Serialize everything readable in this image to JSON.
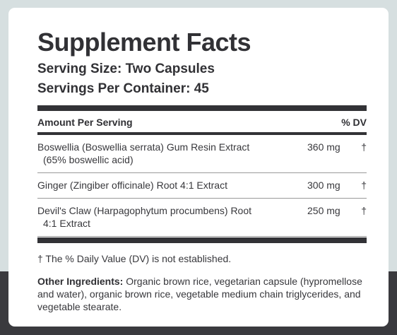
{
  "title": "Supplement Facts",
  "serving_size": "Serving Size: Two Capsules",
  "servings_per_container": "Servings Per Container: 45",
  "table": {
    "header_amount": "Amount Per Serving",
    "header_dv": "% DV",
    "rows": [
      {
        "line1": "Boswellia (Boswellia serrata) Gum Resin Extract",
        "line2": "(65% boswellic acid)",
        "amount": "360 mg",
        "dv": "†"
      },
      {
        "line1": "Ginger (Zingiber officinale) Root 4:1 Extract",
        "line2": "",
        "amount": "300 mg",
        "dv": "†"
      },
      {
        "line1": "Devil's Claw (Harpagophytum procumbens) Root",
        "line2": "4:1 Extract",
        "amount": "250 mg",
        "dv": "†"
      }
    ]
  },
  "footnote": "† The % Daily Value (DV) is not established.",
  "other_ingredients": {
    "label": "Other Ingredients:",
    "text": " Organic brown rice, vegetarian capsule (hypromellose and water), organic brown rice, vegetable medium chain triglycerides, and vegetable stearate."
  }
}
